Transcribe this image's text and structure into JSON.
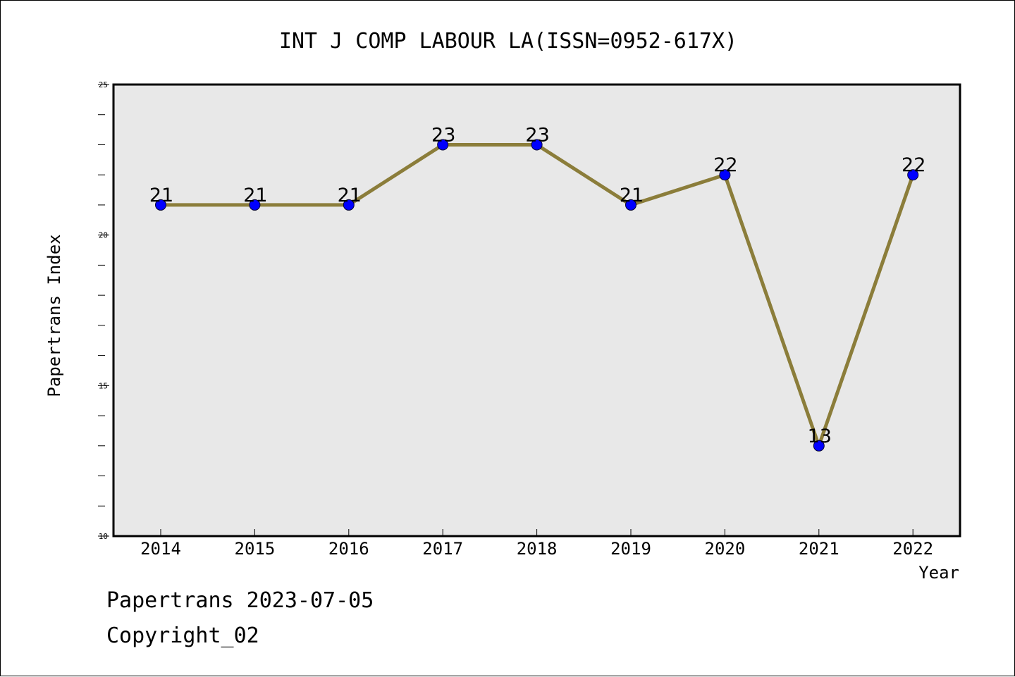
{
  "chart_data": {
    "type": "line",
    "title": "INT J COMP LABOUR LA(ISSN=0952-617X)",
    "xlabel": "Year",
    "ylabel": "Papertrans Index",
    "categories": [
      "2014",
      "2015",
      "2016",
      "2017",
      "2018",
      "2019",
      "2020",
      "2021",
      "2022"
    ],
    "values": [
      21,
      21,
      21,
      23,
      23,
      21,
      22,
      13,
      22
    ],
    "data_labels": [
      "21",
      "21",
      "21",
      "23",
      "23",
      "21",
      "22",
      "13",
      "22"
    ],
    "ylim": [
      10,
      25
    ],
    "yticks": [
      10,
      15,
      20,
      25
    ],
    "ytick_labels": [
      "10",
      "15",
      "20",
      "25"
    ],
    "grid": false,
    "legend": "none",
    "line_color": "#8b7d3a",
    "marker_color": "#0000ff",
    "plot_background": "#e8e8e8"
  },
  "footer": {
    "line1": "Papertrans 2023-07-05",
    "line2": "Copyright_02"
  }
}
